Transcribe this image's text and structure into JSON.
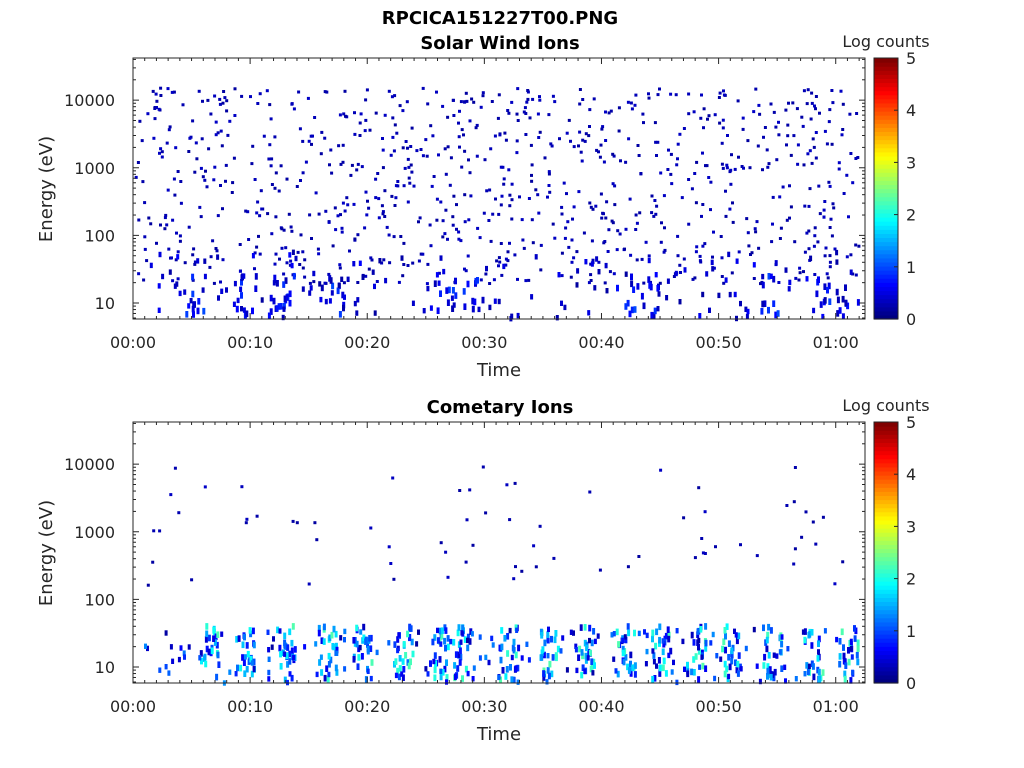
{
  "figure": {
    "title": "RPCICA151227T00.PNG"
  },
  "chart_data": [
    {
      "type": "heatmap",
      "title": "Solar Wind Ions",
      "xlabel": "Time",
      "ylabel": "Energy (eV)",
      "x_ticks": [
        "00:00",
        "00:10",
        "00:20",
        "00:30",
        "00:40",
        "00:50",
        "01:00"
      ],
      "x_range_minutes": [
        0,
        62.5
      ],
      "y_scale": "log",
      "y_ticks": [
        "10",
        "100",
        "1000",
        "10000"
      ],
      "y_range_eV": [
        5.8,
        42000
      ],
      "colorbar": {
        "label": "Log counts",
        "range": [
          0,
          5
        ],
        "ticks": [
          "0",
          "1",
          "2",
          "3",
          "4",
          "5"
        ],
        "colormap": "jet"
      },
      "grid": false,
      "events_minutes": [
        5,
        9.5,
        12.5,
        13,
        17,
        26.5,
        29,
        42,
        44,
        54.5,
        59,
        61
      ],
      "scatter_density": "high",
      "low_energy_activity": "moderate"
    },
    {
      "type": "heatmap",
      "title": "Cometary Ions",
      "xlabel": "Time",
      "ylabel": "Energy (eV)",
      "x_ticks": [
        "00:00",
        "00:10",
        "00:20",
        "00:30",
        "00:40",
        "00:50",
        "01:00"
      ],
      "x_range_minutes": [
        0,
        62.5
      ],
      "y_scale": "log",
      "y_ticks": [
        "10",
        "100",
        "1000",
        "10000"
      ],
      "y_range_eV": [
        5.8,
        42000
      ],
      "colorbar": {
        "label": "Log counts",
        "range": [
          0,
          5
        ],
        "ticks": [
          "0",
          "1",
          "2",
          "3",
          "4",
          "5"
        ],
        "colormap": "jet"
      },
      "grid": false,
      "events_minutes": [
        6.5,
        9.5,
        13,
        16.5,
        19.5,
        23,
        26,
        28,
        32,
        35.5,
        38.5,
        42,
        45,
        48,
        51,
        54.5,
        58,
        61
      ],
      "scatter_density": "low",
      "low_energy_activity": "high"
    }
  ]
}
